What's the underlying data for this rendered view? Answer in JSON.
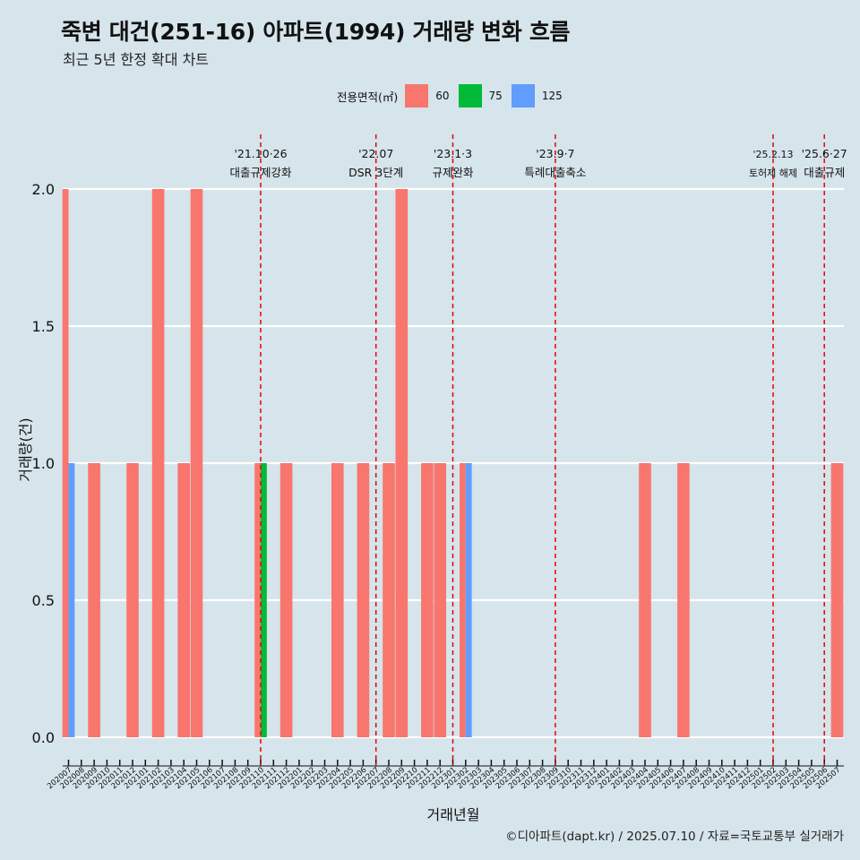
{
  "title": "죽변 대건(251-16) 아파트(1994) 거래량 변화 흐름",
  "subtitle": "최근 5년 한정 확대 차트",
  "caption": "©디아파트(dapt.kr) / 2025.07.10 / 자료=국토교통부 실거래가",
  "legend": {
    "title": "전용면적(㎡)",
    "items": [
      {
        "label": "60",
        "color": "#f8766d"
      },
      {
        "label": "75",
        "color": "#00ba38"
      },
      {
        "label": "125",
        "color": "#619cff"
      }
    ]
  },
  "chart_data": {
    "type": "bar",
    "xlabel": "거래년월",
    "ylabel": "거래량(건)",
    "ylim": [
      0,
      2
    ],
    "yticks": [
      "0.0",
      "0.5",
      "1.0",
      "1.5",
      "2.0"
    ],
    "grid": true,
    "legend_position": "top",
    "categories": [
      "202007",
      "202008",
      "202009",
      "202010",
      "202011",
      "202012",
      "202101",
      "202102",
      "202103",
      "202104",
      "202105",
      "202106",
      "202107",
      "202108",
      "202109",
      "202110",
      "202111",
      "202112",
      "202201",
      "202202",
      "202203",
      "202204",
      "202205",
      "202206",
      "202207",
      "202208",
      "202209",
      "202210",
      "202211",
      "202212",
      "202301",
      "202302",
      "202303",
      "202304",
      "202305",
      "202306",
      "202307",
      "202308",
      "202309",
      "202310",
      "202311",
      "202312",
      "202401",
      "202402",
      "202403",
      "202404",
      "202405",
      "202406",
      "202407",
      "202408",
      "202409",
      "202410",
      "202411",
      "202412",
      "202501",
      "202502",
      "202503",
      "202504",
      "202505",
      "202506",
      "202507"
    ],
    "series": [
      {
        "name": "60",
        "color": "#f8766d",
        "values": [
          2,
          0,
          1,
          0,
          0,
          1,
          0,
          2,
          0,
          1,
          2,
          0,
          0,
          0,
          0,
          1,
          0,
          1,
          0,
          0,
          0,
          1,
          0,
          1,
          0,
          1,
          2,
          0,
          1,
          1,
          0,
          1,
          0,
          0,
          0,
          0,
          0,
          0,
          0,
          0,
          0,
          0,
          0,
          0,
          0,
          1,
          0,
          0,
          1,
          0,
          0,
          0,
          0,
          0,
          0,
          0,
          0,
          0,
          0,
          0,
          1
        ]
      },
      {
        "name": "75",
        "color": "#00ba38",
        "values": [
          0,
          0,
          0,
          0,
          0,
          0,
          0,
          0,
          0,
          0,
          0,
          0,
          0,
          0,
          0,
          1,
          0,
          0,
          0,
          0,
          0,
          0,
          0,
          0,
          0,
          0,
          0,
          0,
          0,
          0,
          0,
          0,
          0,
          0,
          0,
          0,
          0,
          0,
          0,
          0,
          0,
          0,
          0,
          0,
          0,
          0,
          0,
          0,
          0,
          0,
          0,
          0,
          0,
          0,
          0,
          0,
          0,
          0,
          0,
          0,
          0
        ]
      },
      {
        "name": "125",
        "color": "#619cff",
        "values": [
          1,
          0,
          0,
          0,
          0,
          0,
          0,
          0,
          0,
          0,
          0,
          0,
          0,
          0,
          0,
          0,
          0,
          0,
          0,
          0,
          0,
          0,
          0,
          0,
          0,
          0,
          0,
          0,
          0,
          0,
          0,
          1,
          0,
          0,
          0,
          0,
          0,
          0,
          0,
          0,
          0,
          0,
          0,
          0,
          0,
          0,
          0,
          0,
          0,
          0,
          0,
          0,
          0,
          0,
          0,
          0,
          0,
          0,
          0,
          0,
          0
        ]
      }
    ],
    "annotations": [
      {
        "x": "202110",
        "line1": "'21.10·26",
        "line2": "대출규제강화"
      },
      {
        "x": "202207",
        "line1": "'22.07",
        "line2": "DSR 3단계"
      },
      {
        "x": "202301",
        "line1": "'23.1·3",
        "line2": "규제완화"
      },
      {
        "x": "202309",
        "line1": "'23.9·7",
        "line2": "특례대출축소"
      },
      {
        "x": "202502",
        "line1": "'25.2.13",
        "line2": "토허제 해제"
      },
      {
        "x": "202506",
        "line1": "'25.6·27",
        "line2": "대출규제"
      }
    ],
    "annotation_color": "#e8000b"
  }
}
